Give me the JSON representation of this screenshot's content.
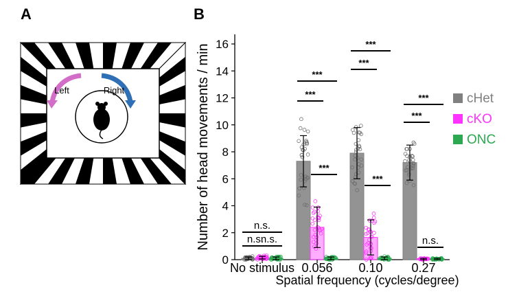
{
  "panels": {
    "a": "A",
    "b": "B"
  },
  "arena": {
    "left_label": "Left",
    "right_label": "Right",
    "left_arrow_color": "#d26ec8",
    "right_arrow_color": "#2f6fb5"
  },
  "chart_data": {
    "type": "bar",
    "xlabel": "Spatial frequency (cycles/degree)",
    "ylabel": "Number of head movements / min",
    "ylim": [
      0,
      16
    ],
    "yticks": [
      "0",
      "2",
      "4",
      "6",
      "8",
      "10",
      "12",
      "14",
      "16"
    ],
    "categories": [
      "No stimulus",
      "0.056",
      "0.10",
      "0.27"
    ],
    "legend_position": "right",
    "series": [
      {
        "name": "cHet",
        "color": "#808080",
        "values": [
          0.1,
          7.3,
          7.9,
          7.2
        ],
        "errors": [
          0.1,
          1.9,
          1.9,
          1.3
        ]
      },
      {
        "name": "cKO",
        "color": "#ff33ff",
        "values": [
          0.15,
          2.4,
          1.65,
          0.05
        ],
        "errors": [
          0.1,
          1.5,
          1.3,
          0.05
        ]
      },
      {
        "name": "ONC",
        "color": "#2ca850",
        "values": [
          0.1,
          0.1,
          0.1,
          0.05
        ],
        "errors": [
          0.1,
          0.1,
          0.1,
          0.05
        ]
      }
    ],
    "significance": [
      {
        "group": 0,
        "from": 0,
        "to": 2,
        "label": "n.s."
      },
      {
        "group": 0,
        "from": 0,
        "to": 1,
        "label": "n.s."
      },
      {
        "group": 0,
        "from": 1,
        "to": 2,
        "label": "n.s."
      },
      {
        "group": 1,
        "from": 0,
        "to": 2,
        "label": "***"
      },
      {
        "group": 1,
        "from": 0,
        "to": 1,
        "label": "***"
      },
      {
        "group": 1,
        "from": 1,
        "to": 2,
        "label": "***"
      },
      {
        "group": 2,
        "from": 0,
        "to": 2,
        "label": "***"
      },
      {
        "group": 2,
        "from": 0,
        "to": 1,
        "label": "***"
      },
      {
        "group": 2,
        "from": 1,
        "to": 2,
        "label": "***"
      },
      {
        "group": 3,
        "from": 0,
        "to": 2,
        "label": "***"
      },
      {
        "group": 3,
        "from": 0,
        "to": 1,
        "label": "***"
      },
      {
        "group": 3,
        "from": 1,
        "to": 2,
        "label": "n.s."
      }
    ]
  }
}
